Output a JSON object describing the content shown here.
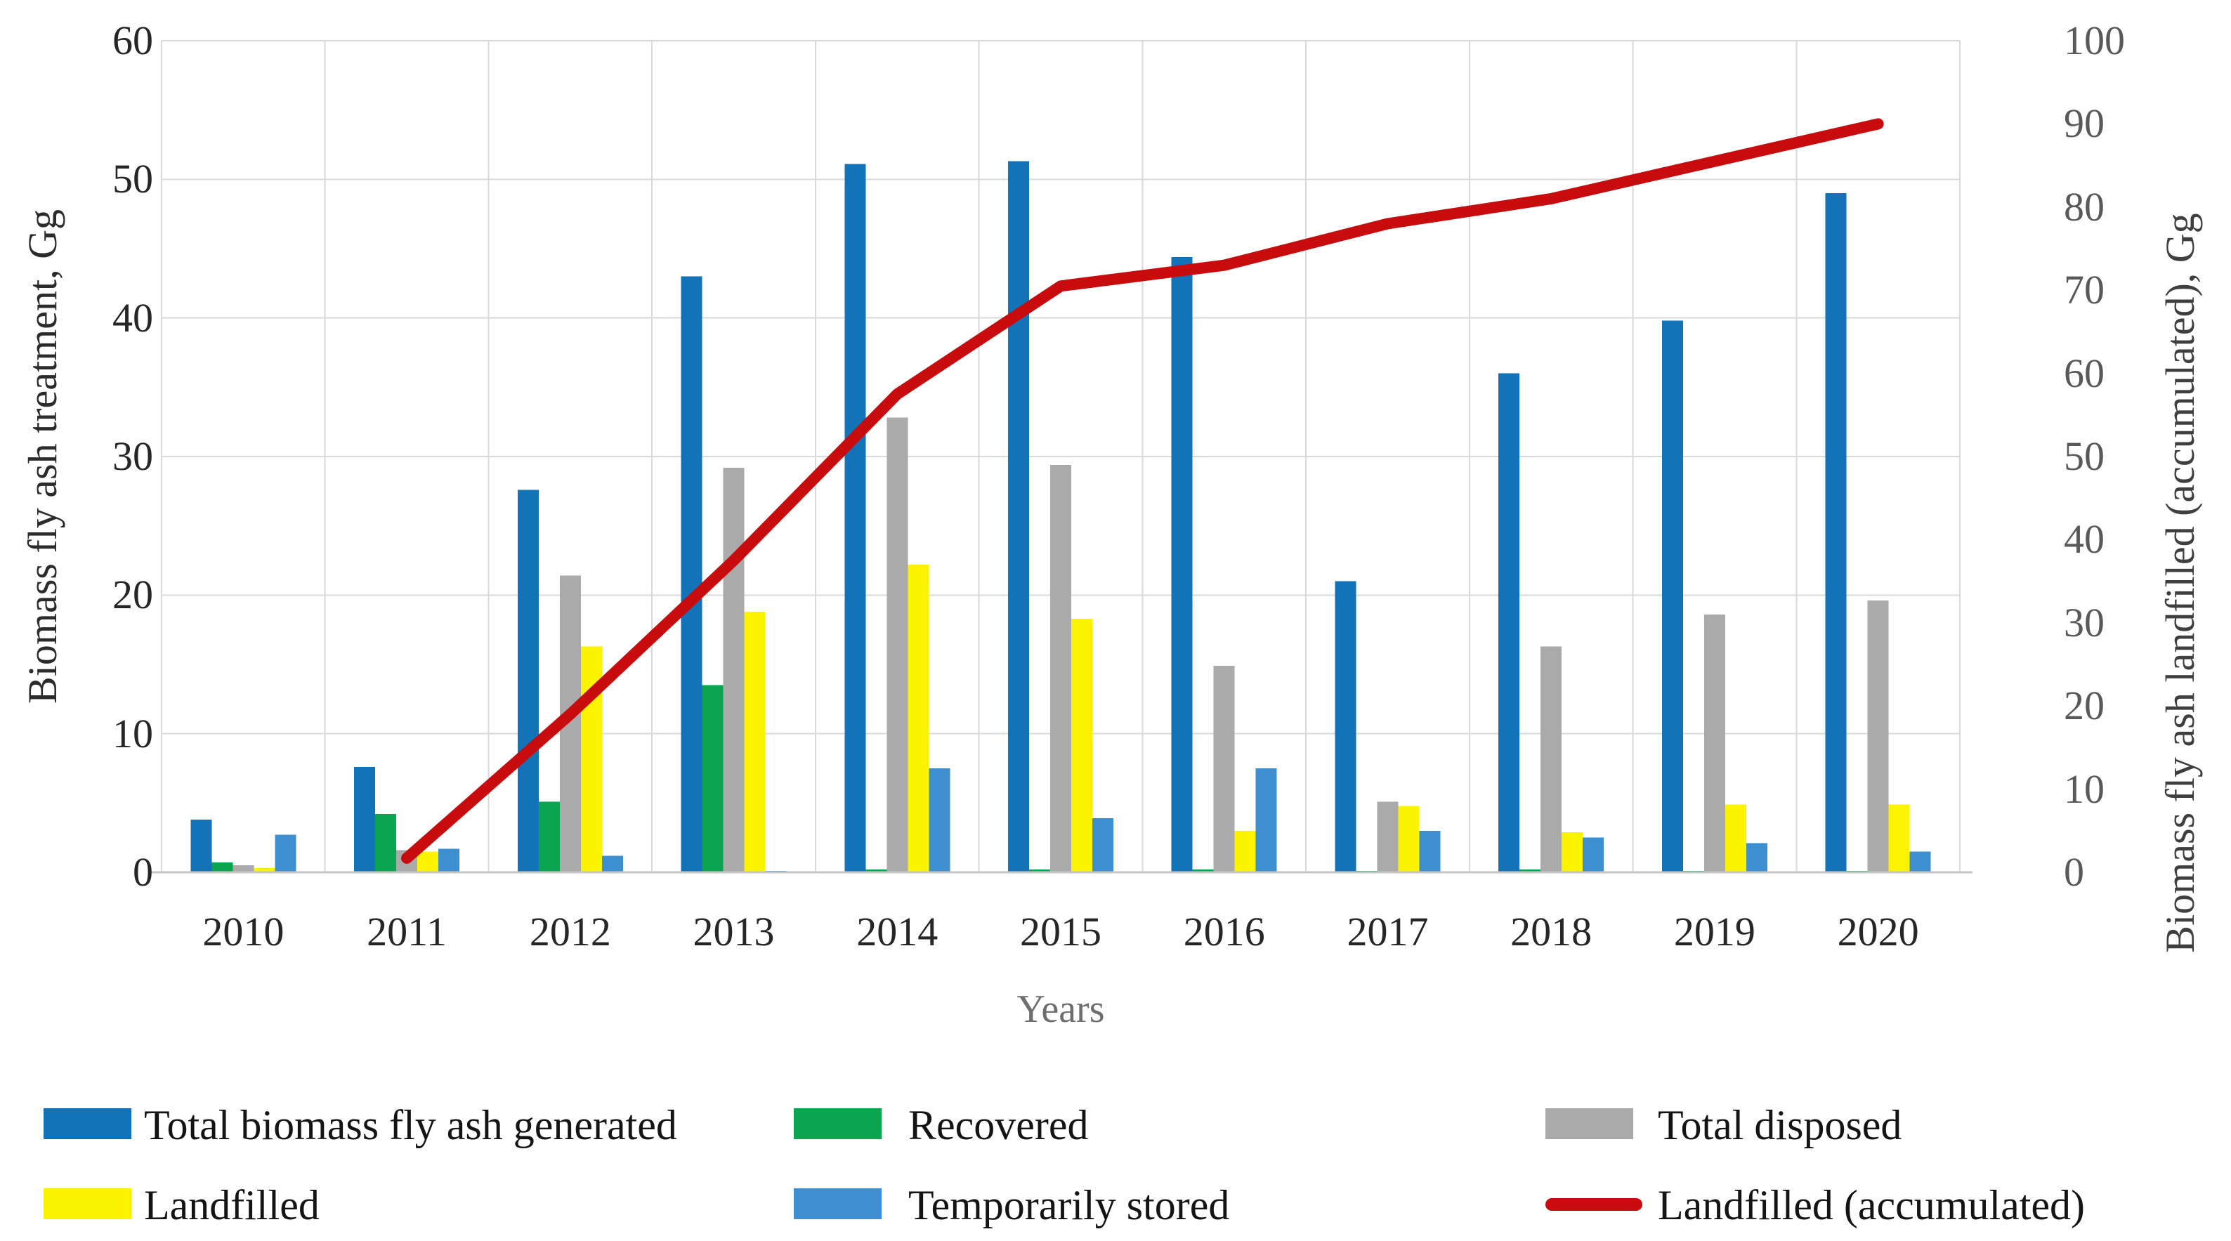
{
  "figure": {
    "left_axis_title": "Biomass fly ash treatment, Gg",
    "right_axis_title": "Biomass fly ash landfilled (accumulated), Gg",
    "x_axis_title": "Years"
  },
  "chart_data": {
    "type": "bar+line",
    "categories": [
      "2010",
      "2011",
      "2012",
      "2013",
      "2014",
      "2015",
      "2016",
      "2017",
      "2018",
      "2019",
      "2020"
    ],
    "series": [
      {
        "name": "Total biomass fly ash generated",
        "type": "bar",
        "axis": "left",
        "color": "#1273B8",
        "values": [
          3.8,
          7.6,
          27.6,
          43.0,
          51.1,
          51.3,
          44.4,
          21.0,
          36.0,
          39.8,
          49.0
        ]
      },
      {
        "name": "Recovered",
        "type": "bar",
        "axis": "left",
        "color": "#0AA54E",
        "values": [
          0.7,
          4.2,
          5.1,
          13.5,
          0.2,
          0.2,
          0.2,
          0.1,
          0.2,
          0.1,
          0.1
        ]
      },
      {
        "name": "Total disposed",
        "type": "bar",
        "axis": "left",
        "color": "#AAAAAA",
        "values": [
          0.5,
          1.6,
          21.4,
          29.2,
          32.8,
          29.4,
          14.9,
          5.1,
          16.3,
          18.6,
          19.6
        ]
      },
      {
        "name": "Landfilled",
        "type": "bar",
        "axis": "left",
        "color": "#FBF300",
        "values": [
          0.3,
          1.5,
          16.3,
          18.8,
          22.2,
          18.3,
          3.0,
          4.8,
          2.9,
          4.9,
          4.9
        ]
      },
      {
        "name": "Temporarily stored",
        "type": "bar",
        "axis": "left",
        "color": "#3E8FD0",
        "values": [
          2.7,
          1.7,
          1.2,
          0.1,
          7.5,
          3.9,
          7.5,
          3.0,
          2.5,
          2.1,
          1.5
        ]
      },
      {
        "name": "Landfilled (accumulated)",
        "type": "line",
        "axis": "right",
        "color": "#C80B0D",
        "values": [
          null,
          1.7,
          19.0,
          37.5,
          57.5,
          70.5,
          73.0,
          78.0,
          81.0,
          85.5,
          90.0
        ]
      }
    ],
    "left_axis": {
      "label": "Biomass fly ash treatment, Gg",
      "min": 0,
      "max": 60,
      "step": 10,
      "ticks": [
        "0",
        "10",
        "20",
        "30",
        "40",
        "50",
        "60"
      ]
    },
    "right_axis": {
      "label": "Biomass fly ash landfilled (accumulated), Gg",
      "min": 0,
      "max": 100,
      "step": 10,
      "ticks": [
        "0",
        "10",
        "20",
        "30",
        "40",
        "50",
        "60",
        "70",
        "80",
        "90",
        "100"
      ]
    },
    "xlabel": "Years",
    "grid": {
      "horizontal": true,
      "vertical_category_boundaries": true,
      "color": "#D9D9D9"
    },
    "axis_line_color": "#C6C6C6",
    "legend_position": "bottom",
    "legend_rows": [
      [
        0,
        1,
        2
      ],
      [
        3,
        4,
        5
      ]
    ]
  }
}
